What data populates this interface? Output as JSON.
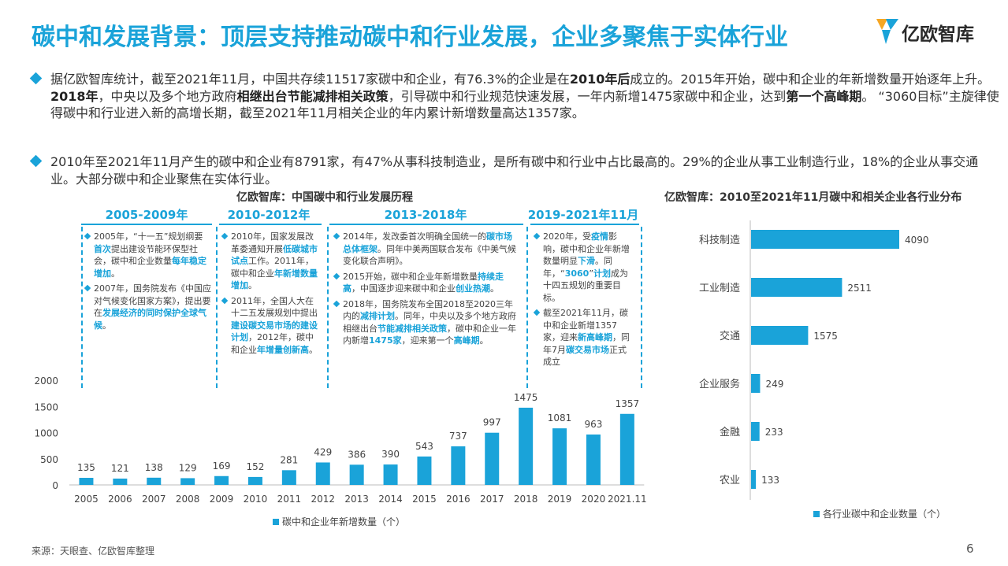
{
  "header": {
    "title": "碳中和发展背景：顶层支持推动碳中和行业发展，企业多聚焦于实体行业",
    "logo_text": "亿欧智库"
  },
  "bullets": [
    {
      "segments": [
        {
          "t": "据亿欧智库统计，截至2021年11月，中国共存续11517家碳中和企业，有76.3%的企业是在",
          "b": false
        },
        {
          "t": "2010年后",
          "b": true
        },
        {
          "t": "成立的。2015年开始，碳中和企业的年新增数量开始逐年上升。",
          "b": false
        },
        {
          "t": "2018年",
          "b": true
        },
        {
          "t": "，中央以及多个地方政府",
          "b": false
        },
        {
          "t": "相继出台节能减排相关政策",
          "b": true
        },
        {
          "t": "，引导碳中和行业规范快速发展，一年内新增1475家碳中和企业，达到",
          "b": false
        },
        {
          "t": "第一个高峰期",
          "b": true
        },
        {
          "t": "。 “3060目标”主旋律使得碳中和行业进入新的高增长期，截至2021年11月相关企业的年内累计新增数量高达1357家。",
          "b": false
        }
      ]
    },
    {
      "segments": [
        {
          "t": "2010年至2021年11月产生的碳中和企业有8791家，有47%从事科技制造业，是所有碳中和行业中占比最高的。29%的企业从事工业制造行业，18%的企业从事交通业。大部分碳中和企业聚焦在实体行业。",
          "b": false
        }
      ]
    }
  ],
  "timeline": {
    "title": "亿欧智库：中国碳中和行业发展历程",
    "periods": [
      {
        "label": "2005-2009年",
        "items": [
          [
            {
              "t": "2005年，“十一五”规划纲要首次",
              "h": false
            },
            {
              "t": "首次",
              "h": true,
              "skip": true
            }
          ],
          []
        ]
      }
    ]
  },
  "periods": [
    {
      "label": "2005-2009年",
      "items": [
        [
          {
            "t": "2005年，“十一五”规划纲要",
            "h": false
          },
          {
            "t": "首次",
            "h": true
          },
          {
            "t": "提出建设节能环保型社会，碳中和企业数量",
            "h": false
          },
          {
            "t": "每年稳定增加",
            "h": true
          },
          {
            "t": "。",
            "h": false
          }
        ],
        [
          {
            "t": "2007年，国务院发布《中国应对气候变化国家方案》，提出要在",
            "h": false
          },
          {
            "t": "发展经济的同时保护全球气候",
            "h": true
          },
          {
            "t": "。",
            "h": false
          }
        ]
      ]
    },
    {
      "label": "2010-2012年",
      "items": [
        [
          {
            "t": "2010年，国家发展改革委通知开展",
            "h": false
          },
          {
            "t": "低碳城市试点",
            "h": true
          },
          {
            "t": "工作。2011年，碳中和企业",
            "h": false
          },
          {
            "t": "年新增数量增加",
            "h": true
          },
          {
            "t": "。",
            "h": false
          }
        ],
        [
          {
            "t": "2011年，全国人大在十二五发展规划中提出",
            "h": false
          },
          {
            "t": "建设碳交易市场的建设计划",
            "h": true
          },
          {
            "t": "，2012年，碳中和企业",
            "h": false
          },
          {
            "t": "年增量创新高",
            "h": true
          },
          {
            "t": "。",
            "h": false
          }
        ]
      ]
    },
    {
      "label": "2013-2018年",
      "items": [
        [
          {
            "t": "2014年，发改委首次明确全国统一的",
            "h": false
          },
          {
            "t": "碳市场总体框架",
            "h": true
          },
          {
            "t": "。同年中美两国联合发布《中美气候变化联合声明》。",
            "h": false
          }
        ],
        [
          {
            "t": "2015开始，碳中和企业年新增数量",
            "h": false
          },
          {
            "t": "持续走高",
            "h": true
          },
          {
            "t": "，中国逐步迎来碳中和企业",
            "h": false
          },
          {
            "t": "创业热潮",
            "h": true
          },
          {
            "t": "。",
            "h": false
          }
        ],
        [
          {
            "t": "2018年，国务院发布全国2018至2020三年内的",
            "h": false
          },
          {
            "t": "减排计划",
            "h": true
          },
          {
            "t": "。同年，中央以及多个地方政府相继出台",
            "h": false
          },
          {
            "t": "节能减排相关政策",
            "h": true
          },
          {
            "t": "，碳中和企业一年内新增",
            "h": false
          },
          {
            "t": "1475家",
            "h": true
          },
          {
            "t": "，迎来第一个",
            "h": false
          },
          {
            "t": "高峰期",
            "h": true
          },
          {
            "t": "。",
            "h": false
          }
        ]
      ]
    },
    {
      "label": "2019-2021年11月",
      "items": [
        [
          {
            "t": "2020年，受",
            "h": false
          },
          {
            "t": "疫情",
            "h": true
          },
          {
            "t": "影响，碳中和企业年新增数量明显",
            "h": false
          },
          {
            "t": "下滑",
            "h": true
          },
          {
            "t": "。同年，“",
            "h": false
          },
          {
            "t": "3060",
            "h": true
          },
          {
            "t": "”",
            "h": false
          },
          {
            "t": "计划",
            "h": true
          },
          {
            "t": "成为十四五规划的重要目标。",
            "h": false
          }
        ],
        [
          {
            "t": "截至2021年11月，碳中和企业新增1357家，迎来",
            "h": false
          },
          {
            "t": "新高峰期",
            "h": true
          },
          {
            "t": "，同年7月",
            "h": false
          },
          {
            "t": "碳交易市场",
            "h": true
          },
          {
            "t": "正式成立",
            "h": false
          }
        ]
      ]
    }
  ],
  "right_chart_title": "亿欧智库：2010至2021年11月碳中和相关企业各行业分布",
  "chart_data": [
    {
      "type": "bar",
      "categories": [
        "2005",
        "2006",
        "2007",
        "2008",
        "2009",
        "2010",
        "2011",
        "2012",
        "2013",
        "2014",
        "2015",
        "2016",
        "2017",
        "2018",
        "2019",
        "2020",
        "2021.11"
      ],
      "series": [
        {
          "name": "碳中和企业年新增数量（个）",
          "values": [
            135,
            121,
            138,
            129,
            169,
            152,
            281,
            429,
            386,
            390,
            543,
            737,
            997,
            1475,
            1081,
            963,
            1357
          ]
        }
      ],
      "yticks": [
        0,
        500,
        1000,
        1500,
        2000
      ],
      "ylim": [
        0,
        2000
      ],
      "legend": "bottom",
      "color": "#1aa3d9"
    },
    {
      "type": "bar",
      "orientation": "horizontal",
      "title": "亿欧智库：2010至2021年11月碳中和相关企业各行业分布",
      "categories": [
        "科技制造",
        "工业制造",
        "交通",
        "企业服务",
        "金融",
        "农业"
      ],
      "series": [
        {
          "name": "各行业碳中和企业数量（个）",
          "values": [
            4090,
            2511,
            1575,
            249,
            233,
            133
          ]
        }
      ],
      "legend": "bottom",
      "color": "#1aa3d9"
    }
  ],
  "footer": {
    "source": "来源：天眼查、亿欧智库整理",
    "page": "6"
  }
}
